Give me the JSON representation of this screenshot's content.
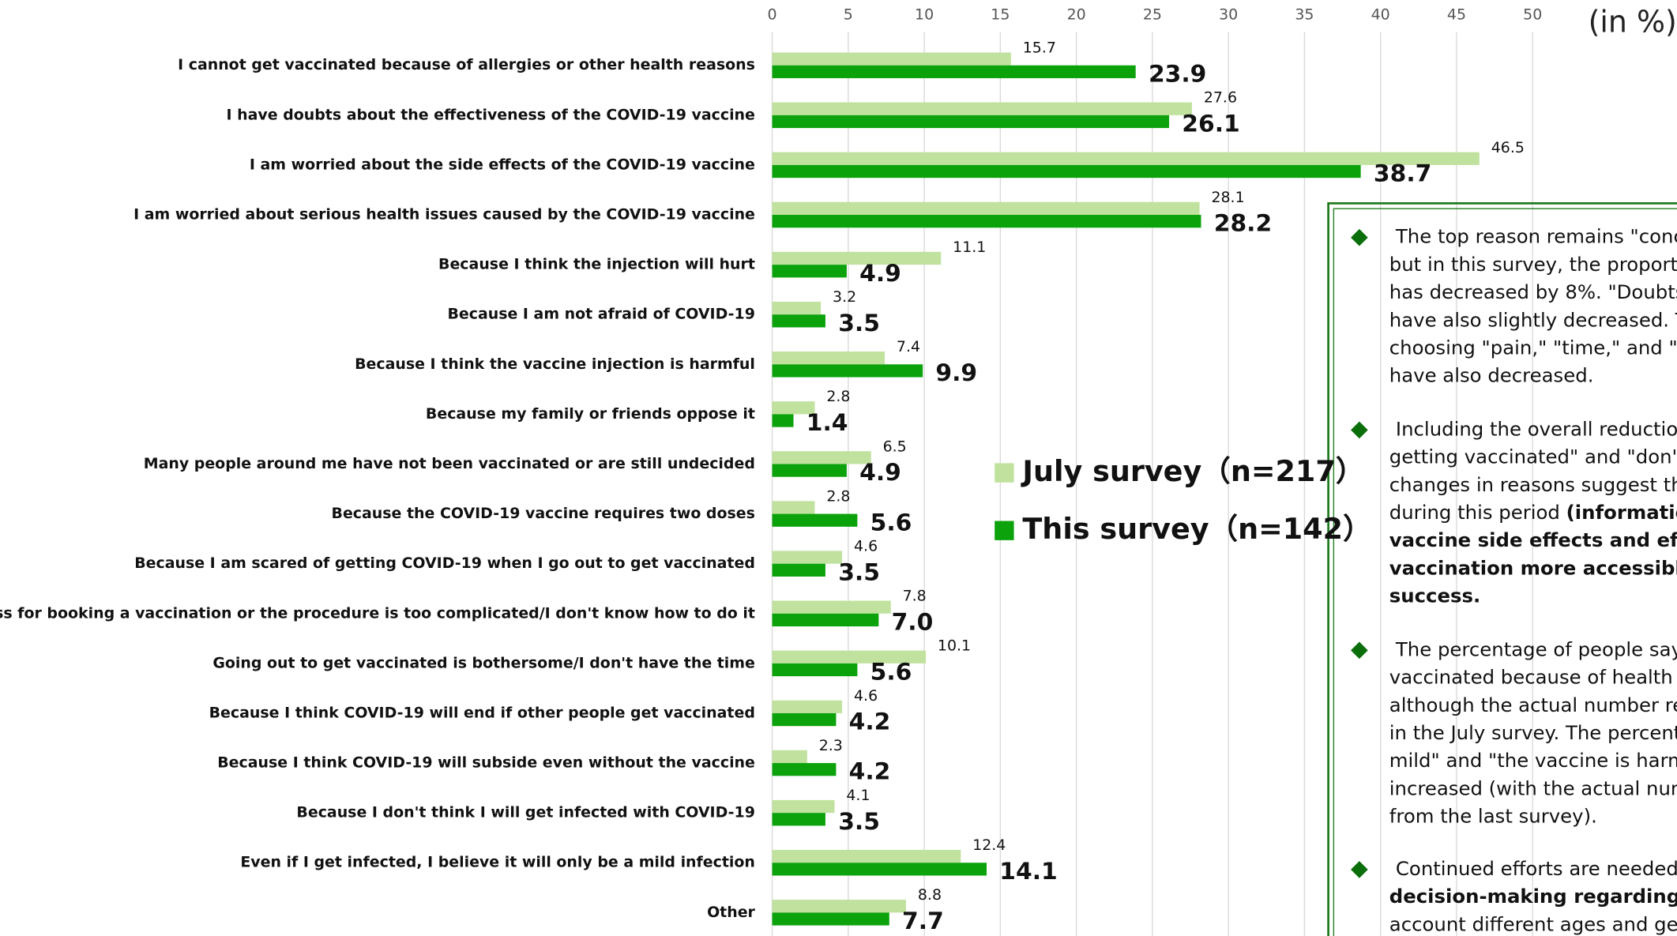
{
  "chart_data": {
    "type": "bar",
    "orientation": "horizontal",
    "axis_unit": "(in %)",
    "categories": [
      "I cannot get vaccinated because of allergies or other health reasons",
      "I have doubts about the effectiveness of the COVID-19 vaccine",
      "I am worried about the side effects of the COVID-19 vaccine",
      "I am worried about serious health issues caused by the COVID-19 vaccine",
      "Because I think the injection will hurt",
      "Because I am not afraid of COVID-19",
      "Because I think the vaccine injection is harmful",
      "Because my family or friends oppose it",
      "Many people around me have not been vaccinated or are still undecided",
      "Because the COVID-19 vaccine requires two doses",
      "Because I am scared of getting COVID-19 when I go out to get vaccinated",
      "The process for booking a vaccination or the procedure is too complicated/I don't know how to do it",
      "Going out to get vaccinated is bothersome/I don't have the time",
      "Because I think COVID-19 will end if other people get vaccinated",
      "Because I think COVID-19 will subside even without the vaccine",
      "Because I don't think I will get infected with COVID-19",
      "Even if I get infected, I believe it will only be a mild infection",
      "Other"
    ],
    "series": [
      {
        "name": "July survey（n=217）",
        "color": "#c0e29e",
        "values": [
          15.7,
          27.6,
          46.5,
          28.1,
          11.1,
          3.2,
          7.4,
          2.8,
          6.5,
          2.8,
          4.6,
          7.8,
          10.1,
          4.6,
          2.3,
          4.1,
          12.4,
          8.8
        ]
      },
      {
        "name": "This survey（n=142）",
        "color": "#0ca20c",
        "values": [
          23.9,
          26.1,
          38.7,
          28.2,
          4.9,
          3.5,
          9.9,
          1.4,
          4.9,
          5.6,
          3.5,
          7.0,
          5.6,
          4.2,
          4.2,
          3.5,
          14.1,
          7.7
        ],
        "value_labels": [
          "23.9",
          "26.1",
          "38.7",
          "28.2",
          "4.9",
          "3.5",
          "9.9",
          "1.4",
          "4.9",
          "5.6",
          "3.5",
          "7.0",
          "5.6",
          "4.2",
          "4.2",
          "3.5",
          "14.1",
          "7.7"
        ]
      }
    ],
    "xlim": [
      0,
      50
    ],
    "xticks": [
      0,
      5,
      10,
      15,
      20,
      25,
      30,
      35,
      40,
      45,
      50
    ],
    "grid": true
  },
  "notes": [
    [
      [
        {
          "text": "The top reason remains \"conc",
          "bold": false
        }
      ],
      [
        {
          "text": "but in this survey, the proporti",
          "bold": false
        }
      ],
      [
        {
          "text": "has decreased by 8%. \"Doubts",
          "bold": false
        }
      ],
      [
        {
          "text": "have also slightly decreased. Th",
          "bold": false
        }
      ],
      [
        {
          "text": "choosing \"pain,\" \"time,\" and \"p",
          "bold": false
        }
      ],
      [
        {
          "text": "have also decreased.",
          "bold": false
        }
      ]
    ],
    [
      [
        {
          "text": "Including the overall reduction",
          "bold": false
        }
      ],
      [
        {
          "text": "getting vaccinated\" and \"don't",
          "bold": false
        }
      ],
      [
        {
          "text": "changes in reasons suggest tha",
          "bold": false
        }
      ],
      [
        {
          "text": "during this period ",
          "bold": false
        },
        {
          "text": "(information",
          "bold": true
        }
      ],
      [
        {
          "text": "vaccine side effects and effect",
          "bold": true
        }
      ],
      [
        {
          "text": "vaccination more accessible, e",
          "bold": true
        }
      ],
      [
        {
          "text": "success.",
          "bold": true
        }
      ]
    ],
    [
      [
        {
          "text": "The percentage of people sayi",
          "bold": false
        }
      ],
      [
        {
          "text": "vaccinated because of health r",
          "bold": false
        }
      ],
      [
        {
          "text": "although the actual number re",
          "bold": false
        }
      ],
      [
        {
          "text": "in the July survey. The percent",
          "bold": false
        }
      ],
      [
        {
          "text": "mild\" and \"the vaccine is harm",
          "bold": false
        }
      ],
      [
        {
          "text": "increased (with the actual num",
          "bold": false
        }
      ],
      [
        {
          "text": "from the last survey).",
          "bold": false
        }
      ]
    ],
    [
      [
        {
          "text": "Continued efforts are needed",
          "bold": false
        }
      ],
      [
        {
          "text": "decision-making regarding vac",
          "bold": true
        }
      ],
      [
        {
          "text": "account different ages and gen",
          "bold": false
        }
      ]
    ]
  ]
}
